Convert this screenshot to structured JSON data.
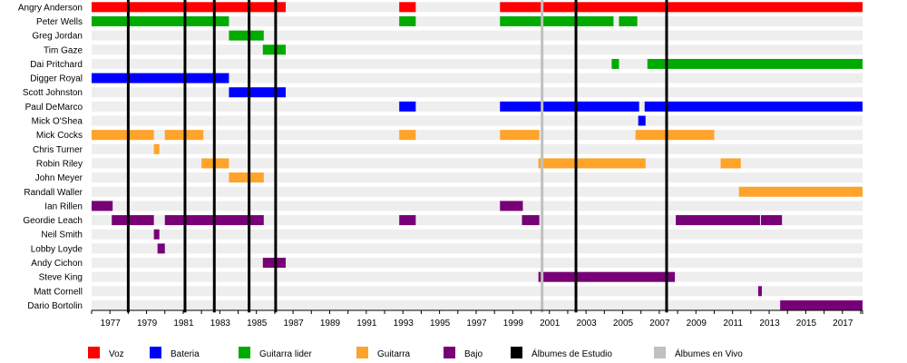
{
  "chart_data": {
    "type": "timeline",
    "title": "",
    "xlabel": "",
    "ylabel": "",
    "xlim": [
      1976.0,
      2018.1
    ],
    "x_ticks": [
      1977,
      1979,
      1981,
      1983,
      1985,
      1987,
      1989,
      1991,
      1993,
      1995,
      1997,
      1999,
      2001,
      2003,
      2005,
      2007,
      2009,
      2011,
      2013,
      2015,
      2017
    ],
    "roles": [
      {
        "key": "voz",
        "name": "Voz",
        "color": "#ff0000"
      },
      {
        "key": "bateria",
        "name": "Bateria",
        "color": "#0000ff"
      },
      {
        "key": "guitarra_lider",
        "name": "Guitarra lider",
        "color": "#00aa00"
      },
      {
        "key": "guitarra",
        "name": "Guitarra",
        "color": "#ffa32a"
      },
      {
        "key": "bajo",
        "name": "Bajo",
        "color": "#770077"
      }
    ],
    "markers": [
      {
        "key": "estudio",
        "name": "Álbumes de Estudio",
        "color": "#000000"
      },
      {
        "key": "vivo",
        "name": "Álbumes en Vivo",
        "color": "#c0c0c0"
      }
    ],
    "studio_albums": [
      1978.0,
      1981.1,
      1982.7,
      1984.6,
      1986.05,
      2002.45,
      2007.4
    ],
    "live_albums": [
      2000.6
    ],
    "members": [
      {
        "name": "Angry Anderson",
        "periods": [
          {
            "role": "voz",
            "start": 1976.0,
            "end": 1986.6
          },
          {
            "role": "voz",
            "start": 1992.8,
            "end": 1993.7
          },
          {
            "role": "voz",
            "start": 1998.3,
            "end": 2018.1
          }
        ]
      },
      {
        "name": "Peter Wells",
        "periods": [
          {
            "role": "guitarra_lider",
            "start": 1976.0,
            "end": 1983.5
          },
          {
            "role": "guitarra_lider",
            "start": 1992.8,
            "end": 1993.7
          },
          {
            "role": "guitarra_lider",
            "start": 1998.3,
            "end": 2004.5
          },
          {
            "role": "guitarra_lider",
            "start": 2004.8,
            "end": 2005.8
          }
        ]
      },
      {
        "name": "Greg Jordan",
        "periods": [
          {
            "role": "guitarra_lider",
            "start": 1983.5,
            "end": 1985.4
          }
        ]
      },
      {
        "name": "Tim Gaze",
        "periods": [
          {
            "role": "guitarra_lider",
            "start": 1985.35,
            "end": 1986.6
          }
        ]
      },
      {
        "name": "Dai Pritchard",
        "periods": [
          {
            "role": "guitarra_lider",
            "start": 2004.4,
            "end": 2004.8
          },
          {
            "role": "guitarra_lider",
            "start": 2006.35,
            "end": 2018.1
          }
        ]
      },
      {
        "name": "Digger Royal",
        "periods": [
          {
            "role": "bateria",
            "start": 1976.0,
            "end": 1983.5
          }
        ]
      },
      {
        "name": "Scott Johnston",
        "periods": [
          {
            "role": "bateria",
            "start": 1983.5,
            "end": 1986.6
          }
        ]
      },
      {
        "name": "Paul DeMarco",
        "periods": [
          {
            "role": "bateria",
            "start": 1992.8,
            "end": 1993.7
          },
          {
            "role": "bateria",
            "start": 1998.3,
            "end": 2005.9
          },
          {
            "role": "bateria",
            "start": 2006.2,
            "end": 2018.1
          }
        ]
      },
      {
        "name": "Mick O'Shea",
        "periods": [
          {
            "role": "bateria",
            "start": 2005.85,
            "end": 2006.25
          }
        ]
      },
      {
        "name": "Mick Cocks",
        "periods": [
          {
            "role": "guitarra",
            "start": 1976.0,
            "end": 1979.4
          },
          {
            "role": "guitarra",
            "start": 1980.0,
            "end": 1982.1
          },
          {
            "role": "guitarra",
            "start": 1992.8,
            "end": 1993.7
          },
          {
            "role": "guitarra",
            "start": 1998.3,
            "end": 2000.45
          },
          {
            "role": "guitarra",
            "start": 2005.7,
            "end": 2010.0
          }
        ]
      },
      {
        "name": "Chris Turner",
        "periods": [
          {
            "role": "guitarra",
            "start": 1979.4,
            "end": 1979.7
          }
        ]
      },
      {
        "name": "Robin Riley",
        "periods": [
          {
            "role": "guitarra",
            "start": 1982.0,
            "end": 1983.5
          },
          {
            "role": "guitarra",
            "start": 2000.4,
            "end": 2006.25
          },
          {
            "role": "guitarra",
            "start": 2010.35,
            "end": 2011.45
          }
        ]
      },
      {
        "name": "John Meyer",
        "periods": [
          {
            "role": "guitarra",
            "start": 1983.5,
            "end": 1985.4
          }
        ]
      },
      {
        "name": "Randall Waller",
        "periods": [
          {
            "role": "guitarra",
            "start": 2011.35,
            "end": 2018.1
          }
        ]
      },
      {
        "name": "Ian Rillen",
        "periods": [
          {
            "role": "bajo",
            "start": 1976.0,
            "end": 1977.15
          },
          {
            "role": "bajo",
            "start": 1998.3,
            "end": 1999.55
          }
        ]
      },
      {
        "name": "Geordie Leach",
        "periods": [
          {
            "role": "bajo",
            "start": 1977.1,
            "end": 1979.4
          },
          {
            "role": "bajo",
            "start": 1980.0,
            "end": 1985.4
          },
          {
            "role": "bajo",
            "start": 1992.8,
            "end": 1993.7
          },
          {
            "role": "bajo",
            "start": 1999.5,
            "end": 2000.45
          },
          {
            "role": "bajo",
            "start": 2007.9,
            "end": 2012.5
          },
          {
            "role": "bajo",
            "start": 2012.55,
            "end": 2013.7
          }
        ]
      },
      {
        "name": "Neil Smith",
        "periods": [
          {
            "role": "bajo",
            "start": 1979.4,
            "end": 1979.7
          }
        ]
      },
      {
        "name": "Lobby Loyde",
        "periods": [
          {
            "role": "bajo",
            "start": 1979.6,
            "end": 1980.0
          }
        ]
      },
      {
        "name": "Andy Cichon",
        "periods": [
          {
            "role": "bajo",
            "start": 1985.35,
            "end": 1986.6
          }
        ]
      },
      {
        "name": "Steve King",
        "periods": [
          {
            "role": "bajo",
            "start": 2000.4,
            "end": 2007.85
          }
        ]
      },
      {
        "name": "Matt Cornell",
        "periods": [
          {
            "role": "bajo",
            "start": 2012.4,
            "end": 2012.6
          }
        ]
      },
      {
        "name": "Dario Bortolin",
        "periods": [
          {
            "role": "bajo",
            "start": 2013.6,
            "end": 2018.1
          }
        ]
      }
    ],
    "legend_position": "bottom",
    "grid": false
  }
}
